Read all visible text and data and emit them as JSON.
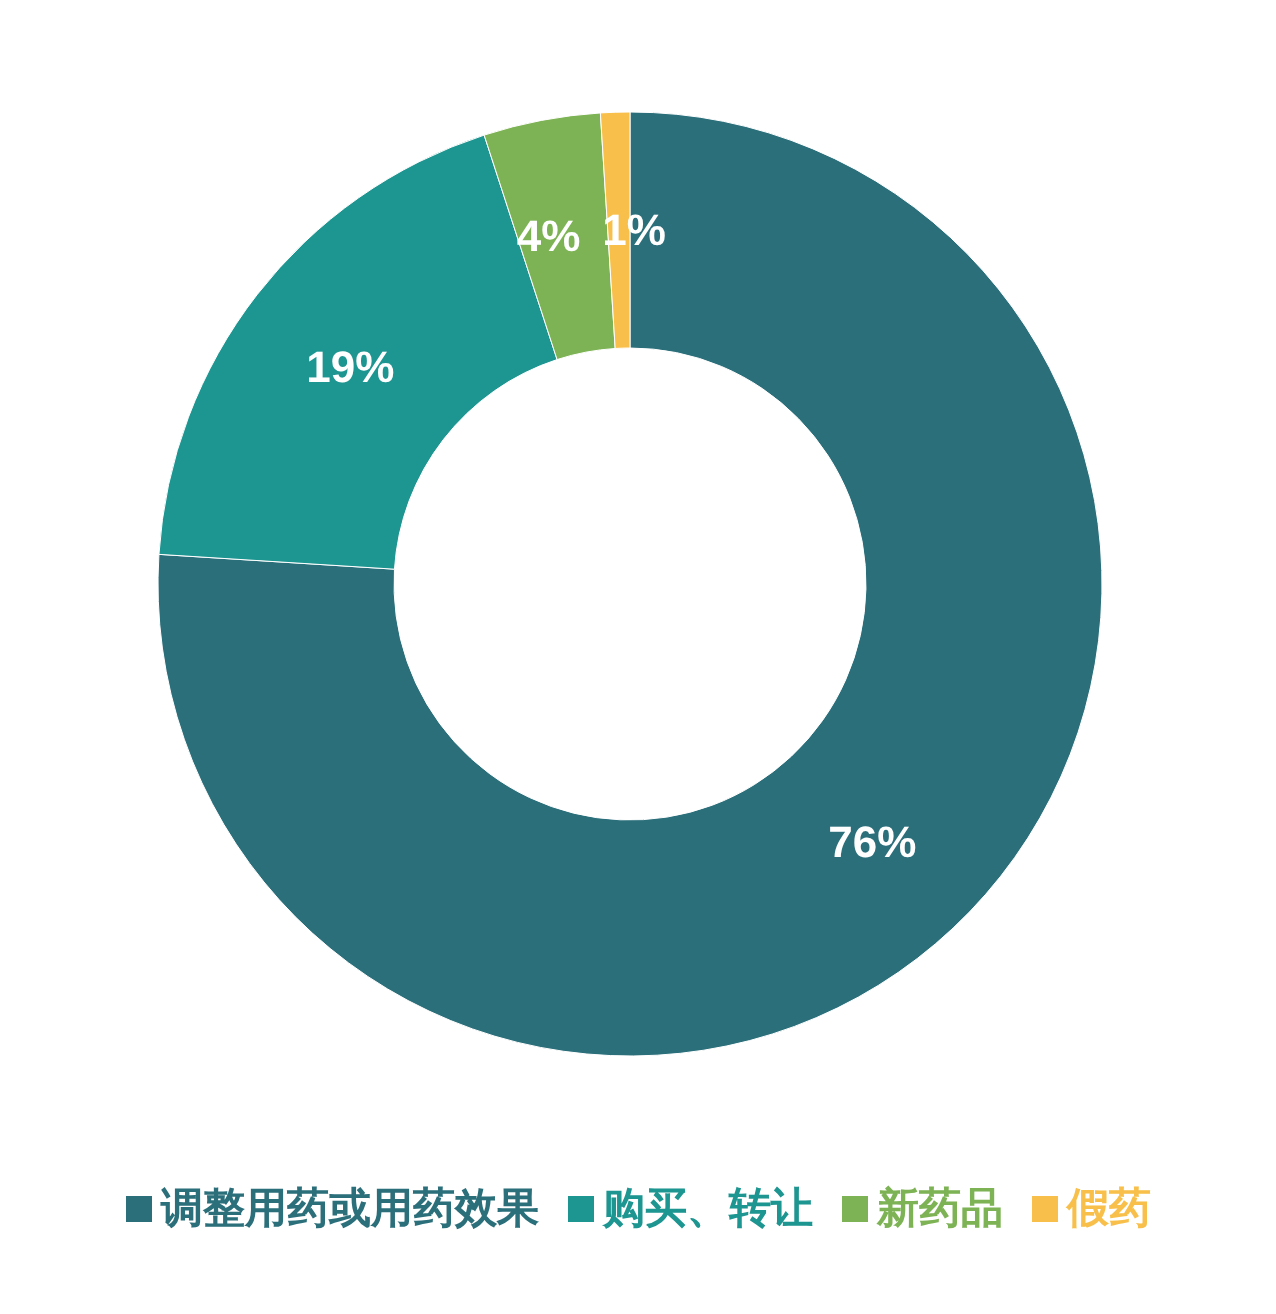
{
  "chart_data": {
    "type": "donut",
    "categories": [
      "调整用药或用药效果",
      "购买、转让",
      "新药品",
      "假药"
    ],
    "values": [
      76,
      19,
      4,
      1
    ],
    "colors": [
      "#2b6f7b",
      "#1d9590",
      "#7db354",
      "#f8c04a"
    ],
    "value_labels": [
      "76%",
      "19%",
      "4%",
      "1%"
    ],
    "legend": "bottom"
  }
}
